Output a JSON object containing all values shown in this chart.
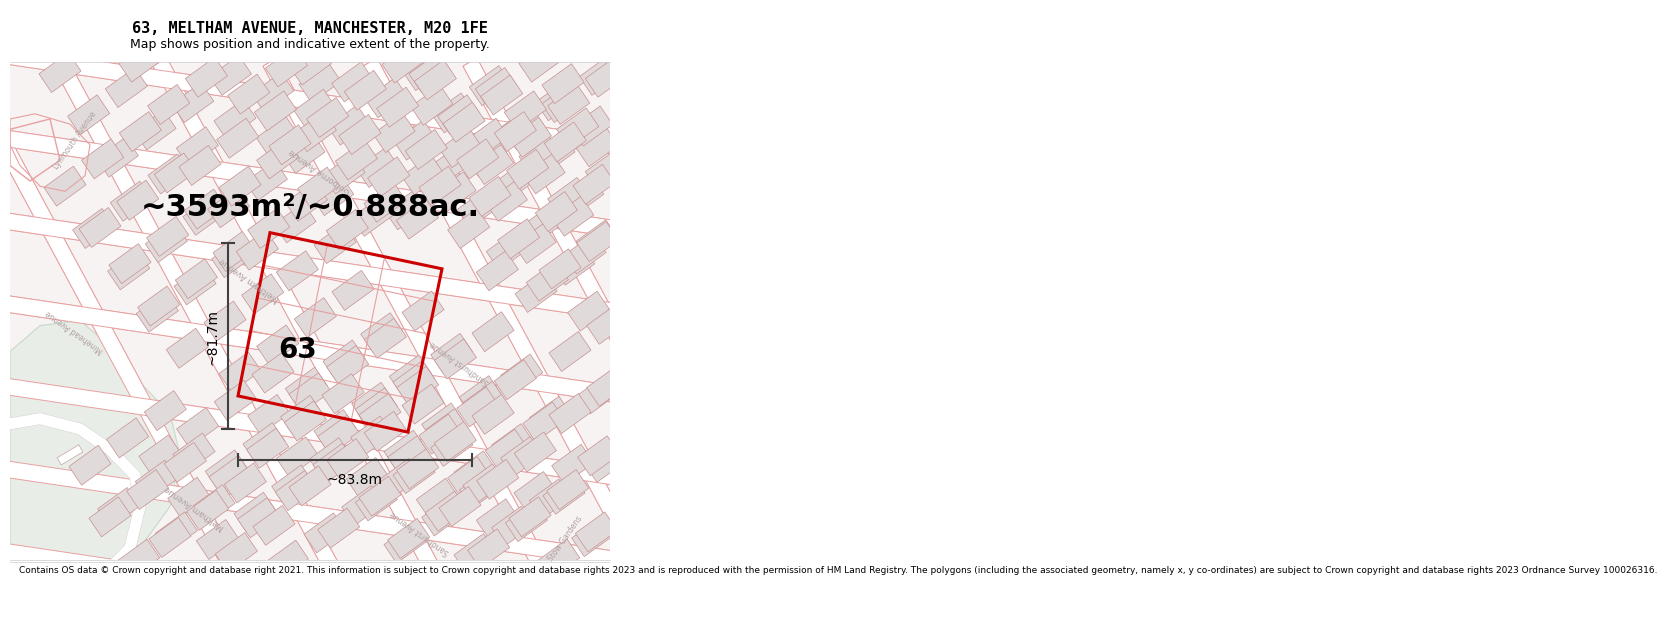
{
  "title": "63, MELTHAM AVENUE, MANCHESTER, M20 1FE",
  "subtitle": "Map shows position and indicative extent of the property.",
  "area_text": "~3593m²/~0.888ac.",
  "label_63": "63",
  "dim_height": "~81.7m",
  "dim_width": "~83.8m",
  "footer": "Contains OS data © Crown copyright and database right 2021. This information is subject to Crown copyright and database rights 2023 and is reproduced with the permission of HM Land Registry. The polygons (including the associated geometry, namely x, y co-ordinates) are subject to Crown copyright and database rights 2023 Ordnance Survey 100026316.",
  "map_bg": "#f7f3f3",
  "road_fill": "#ffffff",
  "road_outline": "#e8a0a0",
  "building_fill": "#e0dada",
  "building_stroke": "#c89090",
  "property_color": "#cc0000",
  "green_fill": "#e8ede8",
  "green_stroke": "#c8d8c8",
  "path_color": "#d8d0d0",
  "title_fontsize": 11,
  "subtitle_fontsize": 9,
  "area_fontsize": 22,
  "label_fontsize": 20,
  "dim_fontsize": 10,
  "footer_fontsize": 6.5,
  "road_label_color": "#b0a0a0",
  "road_label_size": 6
}
